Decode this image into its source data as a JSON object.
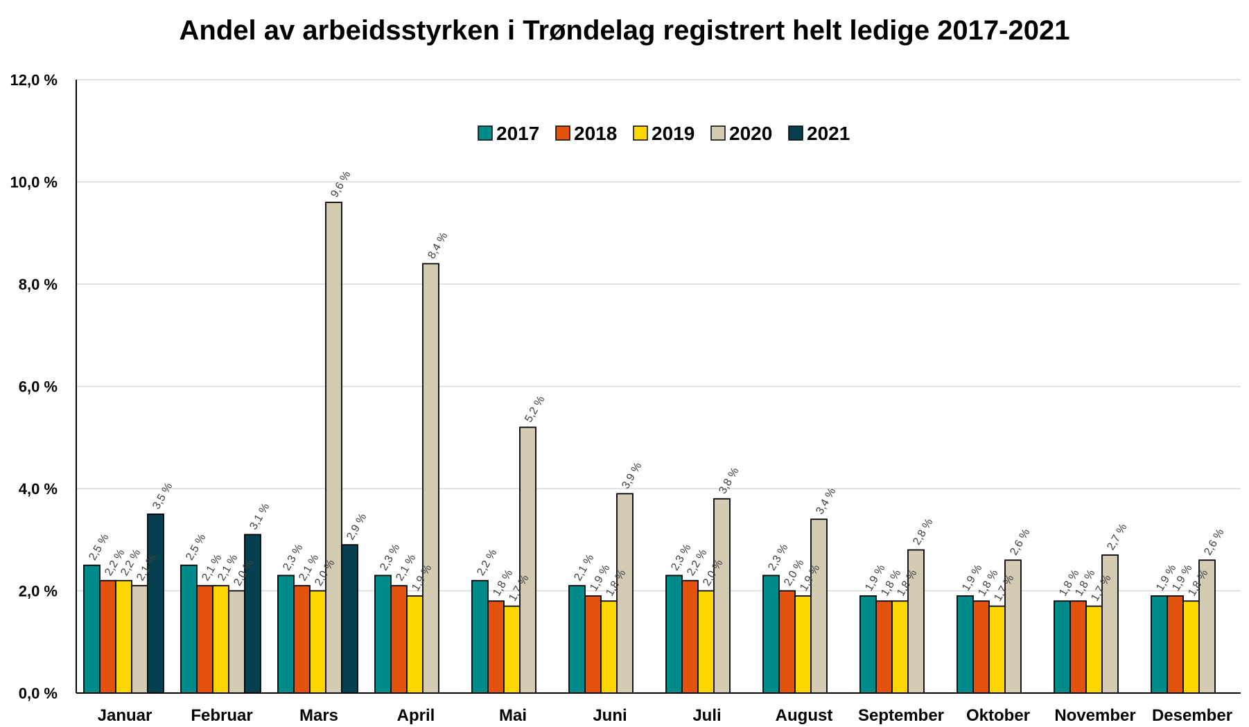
{
  "chart_data": {
    "type": "bar",
    "title": "Andel av arbeidsstyrken i Trøndelag registrert helt ledige 2017-2021",
    "xlabel": "",
    "ylabel": "",
    "ylim": [
      0,
      12
    ],
    "y_ticks": [
      0,
      2,
      4,
      6,
      8,
      10,
      12
    ],
    "y_tick_labels": [
      "0,0 %",
      "2,0 %",
      "4,0 %",
      "6,0 %",
      "8,0 %",
      "10,0 %",
      "12,0 %"
    ],
    "grid": true,
    "legend_position": "top-center",
    "categories": [
      "Januar",
      "Februar",
      "Mars",
      "April",
      "Mai",
      "Juni",
      "Juli",
      "August",
      "September",
      "Oktober",
      "November",
      "Desember"
    ],
    "series": [
      {
        "name": "2017",
        "color": "#008B8B",
        "values": [
          2.5,
          2.5,
          2.3,
          2.3,
          2.2,
          2.1,
          2.3,
          2.3,
          1.9,
          1.9,
          1.8,
          1.9
        ],
        "labels": [
          "2,5 %",
          "2,5 %",
          "2,3 %",
          "2,3 %",
          "2,2 %",
          "2,1 %",
          "2,3 %",
          "2,3 %",
          "1,9 %",
          "1,9 %",
          "1,8 %",
          "1,9 %"
        ]
      },
      {
        "name": "2018",
        "color": "#E3530D",
        "values": [
          2.2,
          2.1,
          2.1,
          2.1,
          1.8,
          1.9,
          2.2,
          2.0,
          1.8,
          1.8,
          1.8,
          1.9
        ],
        "labels": [
          "2,2 %",
          "2,1 %",
          "2,1 %",
          "2,1 %",
          "1,8 %",
          "1,9 %",
          "2,2 %",
          "2,0 %",
          "1,8 %",
          "1,8 %",
          "1,8 %",
          "1,9 %"
        ]
      },
      {
        "name": "2019",
        "color": "#FFD700",
        "values": [
          2.2,
          2.1,
          2.0,
          1.9,
          1.7,
          1.8,
          2.0,
          1.9,
          1.8,
          1.7,
          1.7,
          1.8
        ],
        "labels": [
          "2,2 %",
          "2,1 %",
          "2,0 %",
          "1,9 %",
          "1,7 %",
          "1,8 %",
          "2,0 %",
          "1,9 %",
          "1,8 %",
          "1,7 %",
          "1,7 %",
          "1,8 %"
        ]
      },
      {
        "name": "2020",
        "color": "#D3CBB2",
        "values": [
          2.1,
          2.0,
          9.6,
          8.4,
          5.2,
          3.9,
          3.8,
          3.4,
          2.8,
          2.6,
          2.7,
          2.6
        ],
        "labels": [
          "2,1 %",
          "2,0 %",
          "9,6 %",
          "8,4 %",
          "5,2 %",
          "3,9 %",
          "3,8 %",
          "3,4 %",
          "2,8 %",
          "2,6 %",
          "2,7 %",
          "2,6 %"
        ]
      },
      {
        "name": "2021",
        "color": "#06404F",
        "values": [
          3.5,
          3.1,
          2.9,
          null,
          null,
          null,
          null,
          null,
          null,
          null,
          null,
          null
        ],
        "labels": [
          "3,5 %",
          "3,1 %",
          "2,9 %",
          "",
          "",
          "",
          "",
          "",
          "",
          "",
          "",
          ""
        ]
      }
    ]
  }
}
